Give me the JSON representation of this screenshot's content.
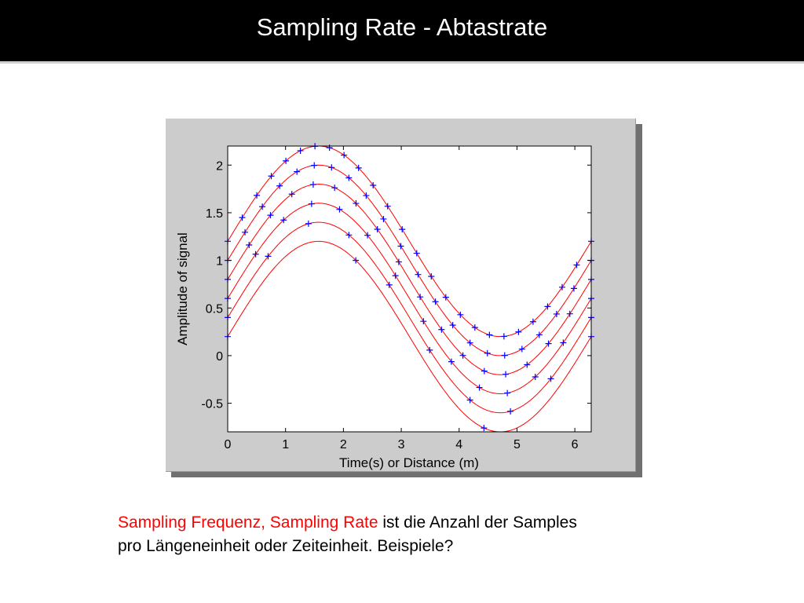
{
  "slide": {
    "title": "Sampling Rate - Abtastrate"
  },
  "caption": {
    "highlight": "Sampling Frequenz, Sampling Rate",
    "rest_line1": " ist die Anzahl der Samples",
    "line2": "pro Längeneinheit oder Zeiteinheit. Beispiele?",
    "highlight_color": "#ff0000"
  },
  "colors": {
    "curve": "#ff0000",
    "marker": "#0000ff",
    "panel": "#cccccc"
  },
  "chart_data": {
    "type": "line",
    "title": "",
    "xlabel": "Time(s) or Distance (m)",
    "ylabel": "Amplitude of signal",
    "xlim": [
      0,
      6.2832
    ],
    "ylim": [
      -0.8,
      2.2
    ],
    "xticks": [
      0,
      1,
      2,
      3,
      4,
      5,
      6
    ],
    "yticks": [
      -0.5,
      0,
      0.5,
      1,
      1.5,
      2
    ],
    "xtick_labels": [
      "0",
      "1",
      "2",
      "3",
      "4",
      "5",
      "6"
    ],
    "ytick_labels": [
      "-0.5",
      "0",
      "0.5",
      "1",
      "1.5",
      "2"
    ],
    "grid": false,
    "legend": "none",
    "function": "y = sin(x) + offset",
    "series": [
      {
        "offset": 0.2,
        "samples": [
          0,
          2.2143,
          4.4286,
          6.2832
        ]
      },
      {
        "offset": 0.4,
        "samples": [
          0,
          0.6981,
          1.3963,
          2.0944,
          2.7925,
          3.4907,
          4.1888,
          4.8869,
          5.5851,
          6.2832
        ]
      },
      {
        "offset": 0.6,
        "samples": [
          0,
          0.4833,
          0.9666,
          1.45,
          1.9333,
          2.4166,
          2.8999,
          3.3833,
          3.8666,
          4.3499,
          4.8332,
          5.3166,
          5.7999,
          6.2832
        ]
      },
      {
        "offset": 0.8,
        "samples": [
          0,
          0.3696,
          0.7392,
          1.1088,
          1.4784,
          1.848,
          2.2176,
          2.5872,
          2.9568,
          3.3264,
          3.696,
          4.0656,
          4.4352,
          4.8048,
          5.1744,
          5.544,
          5.9136,
          6.2832
        ]
      },
      {
        "offset": 1.0,
        "samples": [
          0,
          0.2992,
          0.5984,
          0.8976,
          1.1968,
          1.496,
          1.7952,
          2.0944,
          2.3936,
          2.6928,
          2.992,
          3.2912,
          3.5904,
          3.8896,
          4.1888,
          4.488,
          4.7872,
          5.0864,
          5.3856,
          5.6848,
          5.984,
          6.2832
        ]
      },
      {
        "offset": 1.2,
        "samples": [
          0,
          0.2513,
          0.5027,
          0.754,
          1.0053,
          1.2566,
          1.508,
          1.7593,
          2.0106,
          2.2619,
          2.5133,
          2.7646,
          3.0159,
          3.2673,
          3.5186,
          3.7699,
          4.0212,
          4.2726,
          4.5239,
          4.7752,
          5.0265,
          5.2779,
          5.5292,
          5.7805,
          6.0319,
          6.2832
        ]
      }
    ]
  }
}
